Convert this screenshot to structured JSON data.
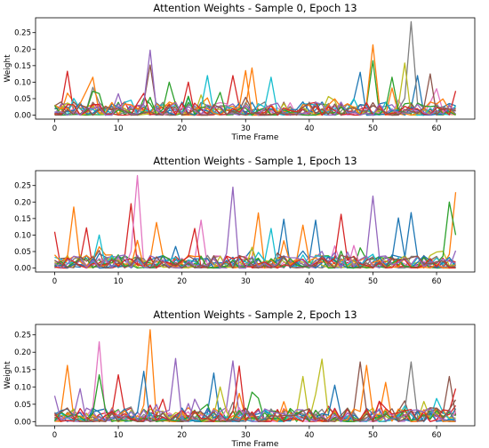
{
  "chart_data": [
    {
      "type": "line",
      "title": "Attention Weights - Sample 0, Epoch 13",
      "xlabel": "Time Frame",
      "ylabel": "Weight",
      "xlim": [
        -3,
        66
      ],
      "ylim": [
        -0.012,
        0.295
      ],
      "x_ticks": [
        0,
        10,
        20,
        30,
        40,
        50,
        60
      ],
      "y_ticks": [
        0.0,
        0.05,
        0.1,
        0.15,
        0.2,
        0.25
      ],
      "y_tick_labels": [
        "0.00",
        "0.05",
        "0.10",
        "0.15",
        "0.20",
        "0.25"
      ],
      "grid": false,
      "legend": "none",
      "series_count": 16,
      "frames": 64,
      "baseline_max": 0.04,
      "peaks": [
        {
          "x": 2,
          "y": 0.133,
          "color": "#d62728"
        },
        {
          "x": 6,
          "y": 0.115,
          "color": "#ff7f0e"
        },
        {
          "x": 10,
          "y": 0.065,
          "color": "#9467bd"
        },
        {
          "x": 15,
          "y": 0.197,
          "color": "#9467bd"
        },
        {
          "x": 15,
          "y": 0.152,
          "color": "#8c564b"
        },
        {
          "x": 18,
          "y": 0.1,
          "color": "#2ca02c"
        },
        {
          "x": 21,
          "y": 0.1,
          "color": "#d62728"
        },
        {
          "x": 24,
          "y": 0.12,
          "color": "#17becf"
        },
        {
          "x": 28,
          "y": 0.12,
          "color": "#d62728"
        },
        {
          "x": 30,
          "y": 0.135,
          "color": "#ff7f0e"
        },
        {
          "x": 31,
          "y": 0.143,
          "color": "#ff7f0e"
        },
        {
          "x": 34,
          "y": 0.115,
          "color": "#17becf"
        },
        {
          "x": 48,
          "y": 0.13,
          "color": "#1f77b4"
        },
        {
          "x": 50,
          "y": 0.213,
          "color": "#ff7f0e"
        },
        {
          "x": 50,
          "y": 0.165,
          "color": "#2ca02c"
        },
        {
          "x": 53,
          "y": 0.115,
          "color": "#2ca02c"
        },
        {
          "x": 55,
          "y": 0.158,
          "color": "#bcbd22"
        },
        {
          "x": 56,
          "y": 0.283,
          "color": "#7f7f7f"
        },
        {
          "x": 57,
          "y": 0.12,
          "color": "#1f77b4"
        },
        {
          "x": 59,
          "y": 0.125,
          "color": "#8c564b"
        },
        {
          "x": 60,
          "y": 0.08,
          "color": "#e377c2"
        }
      ]
    },
    {
      "type": "line",
      "title": "Attention Weights - Sample 1, Epoch 13",
      "xlabel": "",
      "ylabel": "",
      "xlim": [
        -3,
        66
      ],
      "ylim": [
        -0.012,
        0.295
      ],
      "x_ticks": [
        0,
        10,
        20,
        30,
        40,
        50,
        60
      ],
      "y_ticks": [
        0.0,
        0.05,
        0.1,
        0.15,
        0.2,
        0.25
      ],
      "y_tick_labels": [
        "0.00",
        "0.05",
        "0.10",
        "0.15",
        "0.20",
        "0.25"
      ],
      "grid": false,
      "legend": "none",
      "series_count": 16,
      "frames": 64,
      "baseline_max": 0.04,
      "peaks": [
        {
          "x": 0,
          "y": 0.11,
          "color": "#d62728"
        },
        {
          "x": 3,
          "y": 0.185,
          "color": "#ff7f0e"
        },
        {
          "x": 5,
          "y": 0.122,
          "color": "#d62728"
        },
        {
          "x": 7,
          "y": 0.1,
          "color": "#17becf"
        },
        {
          "x": 12,
          "y": 0.195,
          "color": "#d62728"
        },
        {
          "x": 13,
          "y": 0.28,
          "color": "#e377c2"
        },
        {
          "x": 16,
          "y": 0.138,
          "color": "#ff7f0e"
        },
        {
          "x": 22,
          "y": 0.12,
          "color": "#d62728"
        },
        {
          "x": 23,
          "y": 0.145,
          "color": "#e377c2"
        },
        {
          "x": 28,
          "y": 0.245,
          "color": "#9467bd"
        },
        {
          "x": 32,
          "y": 0.167,
          "color": "#ff7f0e"
        },
        {
          "x": 34,
          "y": 0.12,
          "color": "#17becf"
        },
        {
          "x": 36,
          "y": 0.148,
          "color": "#1f77b4"
        },
        {
          "x": 39,
          "y": 0.13,
          "color": "#ff7f0e"
        },
        {
          "x": 41,
          "y": 0.145,
          "color": "#1f77b4"
        },
        {
          "x": 45,
          "y": 0.163,
          "color": "#d62728"
        },
        {
          "x": 50,
          "y": 0.218,
          "color": "#9467bd"
        },
        {
          "x": 54,
          "y": 0.152,
          "color": "#1f77b4"
        },
        {
          "x": 56,
          "y": 0.168,
          "color": "#1f77b4"
        },
        {
          "x": 62,
          "y": 0.2,
          "color": "#2ca02c"
        },
        {
          "x": 63,
          "y": 0.23,
          "color": "#ff7f0e"
        },
        {
          "x": 63,
          "y": 0.1,
          "color": "#2ca02c"
        }
      ]
    },
    {
      "type": "line",
      "title": "Attention Weights - Sample 2, Epoch 13",
      "xlabel": "Time Frame",
      "ylabel": "Weight",
      "xlim": [
        -3,
        66
      ],
      "ylim": [
        -0.012,
        0.28
      ],
      "x_ticks": [
        0,
        10,
        20,
        30,
        40,
        50,
        60
      ],
      "y_ticks": [
        0.0,
        0.05,
        0.1,
        0.15,
        0.2,
        0.25
      ],
      "y_tick_labels": [
        "0.00",
        "0.05",
        "0.10",
        "0.15",
        "0.20",
        "0.25"
      ],
      "grid": false,
      "legend": "none",
      "series_count": 16,
      "frames": 64,
      "baseline_max": 0.04,
      "peaks": [
        {
          "x": 2,
          "y": 0.162,
          "color": "#ff7f0e"
        },
        {
          "x": 4,
          "y": 0.095,
          "color": "#9467bd"
        },
        {
          "x": 7,
          "y": 0.23,
          "color": "#e377c2"
        },
        {
          "x": 7,
          "y": 0.135,
          "color": "#2ca02c"
        },
        {
          "x": 10,
          "y": 0.135,
          "color": "#d62728"
        },
        {
          "x": 14,
          "y": 0.145,
          "color": "#1f77b4"
        },
        {
          "x": 15,
          "y": 0.265,
          "color": "#ff7f0e"
        },
        {
          "x": 19,
          "y": 0.182,
          "color": "#9467bd"
        },
        {
          "x": 25,
          "y": 0.14,
          "color": "#1f77b4"
        },
        {
          "x": 26,
          "y": 0.1,
          "color": "#bcbd22"
        },
        {
          "x": 28,
          "y": 0.175,
          "color": "#9467bd"
        },
        {
          "x": 29,
          "y": 0.16,
          "color": "#d62728"
        },
        {
          "x": 31,
          "y": 0.085,
          "color": "#2ca02c"
        },
        {
          "x": 39,
          "y": 0.13,
          "color": "#bcbd22"
        },
        {
          "x": 42,
          "y": 0.18,
          "color": "#bcbd22"
        },
        {
          "x": 44,
          "y": 0.105,
          "color": "#1f77b4"
        },
        {
          "x": 48,
          "y": 0.172,
          "color": "#8c564b"
        },
        {
          "x": 49,
          "y": 0.162,
          "color": "#ff7f0e"
        },
        {
          "x": 52,
          "y": 0.113,
          "color": "#ff7f0e"
        },
        {
          "x": 56,
          "y": 0.172,
          "color": "#7f7f7f"
        },
        {
          "x": 62,
          "y": 0.13,
          "color": "#8c564b"
        },
        {
          "x": 63,
          "y": 0.095,
          "color": "#d62728"
        }
      ]
    }
  ],
  "palette": [
    "#1f77b4",
    "#ff7f0e",
    "#2ca02c",
    "#d62728",
    "#9467bd",
    "#8c564b",
    "#e377c2",
    "#7f7f7f",
    "#bcbd22",
    "#17becf"
  ]
}
